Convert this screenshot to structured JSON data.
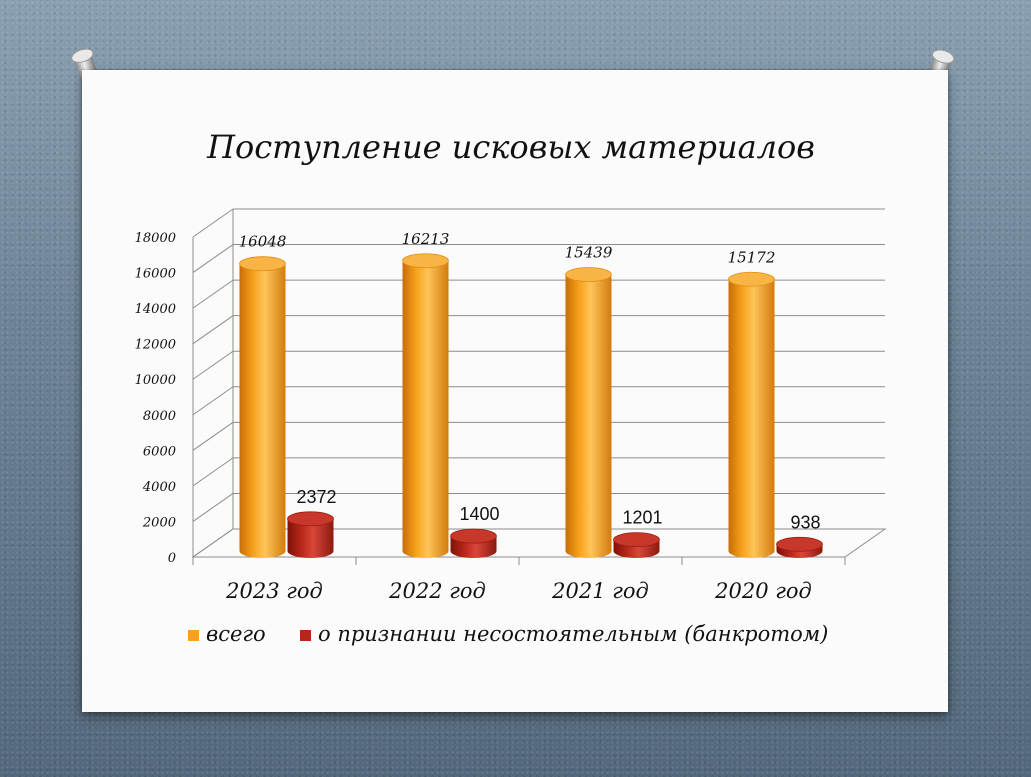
{
  "chart_data": {
    "type": "bar",
    "title": "Поступление исковых материалов",
    "categories": [
      "2023 год",
      "2022 год",
      "2021 год",
      "2020 год"
    ],
    "series": [
      {
        "name": "всего",
        "values": [
          16048,
          16213,
          15439,
          15172
        ],
        "color": "#f7a21c"
      },
      {
        "name": "о признании несостоятельным (банкротом)",
        "values": [
          2372,
          1400,
          1201,
          938
        ],
        "color": "#b8261a"
      }
    ],
    "y_ticks": [
      0,
      2000,
      4000,
      6000,
      8000,
      10000,
      12000,
      14000,
      16000,
      18000
    ],
    "ylim": [
      0,
      18000
    ],
    "grid": true,
    "legend": "bottom",
    "style": "3d-cylinder"
  }
}
